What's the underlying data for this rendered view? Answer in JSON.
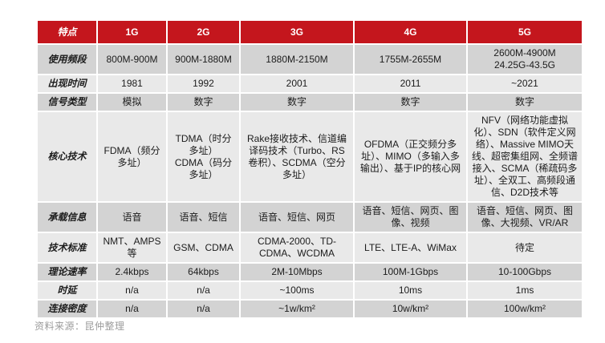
{
  "page": {
    "source_note": "资料来源：昆仲整理"
  },
  "colors": {
    "header_bg": "#c4161d",
    "header_text": "#ffffff",
    "row_dark": "#d3d3d3",
    "row_light": "#e9e9e9",
    "body_text": "#1c1c1c",
    "note_text": "#9c9c9c"
  },
  "table": {
    "header_columns": [
      "特点",
      "1G",
      "2G",
      "3G",
      "4G",
      "5G"
    ],
    "rows": [
      {
        "key": "frequency-band",
        "label": "使用频段",
        "cells": [
          "800M-900M",
          "900M-1880M",
          "1880M-2150M",
          "1755M-2655M",
          "2600M-4900M\n24.25G-43.5G"
        ]
      },
      {
        "key": "launch-year",
        "label": "出现时间",
        "cells": [
          "1981",
          "1992",
          "2001",
          "2011",
          "~2021"
        ]
      },
      {
        "key": "signal-type",
        "label": "信号类型",
        "cells": [
          "模拟",
          "数字",
          "数字",
          "数字",
          "数字"
        ]
      },
      {
        "key": "core-technology",
        "label": "核心技术",
        "cells": [
          "FDMA（频分多址）",
          "TDMA（时分多址）\nCDMA（码分多址）",
          "Rake接收技术、信道编译码技术（Turbo、RS卷积）、SCDMA（空分多址）",
          "OFDMA（正交频分多址）、MIMO（多输入多输出）、基于IP的核心网",
          "NFV（网络功能虚拟化）、SDN（软件定义网络）、Massive MIMO天线、超密集组网、全频谱接入、SCMA（稀疏码多址）、全双工、高频段通信、D2D技术等"
        ]
      },
      {
        "key": "carried-information",
        "label": "承载信息",
        "cells": [
          "语音",
          "语音、短信",
          "语音、短信、网页",
          "语音、短信、网页、图像、视频",
          "语音、短信、网页、图像、大视频、VR/AR"
        ]
      },
      {
        "key": "technical-standard",
        "label": "技术标准",
        "cells": [
          "NMT、AMPS等",
          "GSM、CDMA",
          "CDMA-2000、TD-CDMA、WCDMA",
          "LTE、LTE-A、WiMax",
          "待定"
        ]
      },
      {
        "key": "theoretical-speed",
        "label": "理论速率",
        "cells": [
          "2.4kbps",
          "64kbps",
          "2M-10Mbps",
          "100M-1Gbps",
          "10-100Gbps"
        ]
      },
      {
        "key": "latency",
        "label": "时延",
        "cells": [
          "n/a",
          "n/a",
          "~100ms",
          "10ms",
          "1ms"
        ]
      },
      {
        "key": "connection-density",
        "label": "连接密度",
        "cells": [
          "n/a",
          "n/a",
          "~1w/km²",
          "10w/km²",
          "100w/km²"
        ]
      }
    ]
  }
}
